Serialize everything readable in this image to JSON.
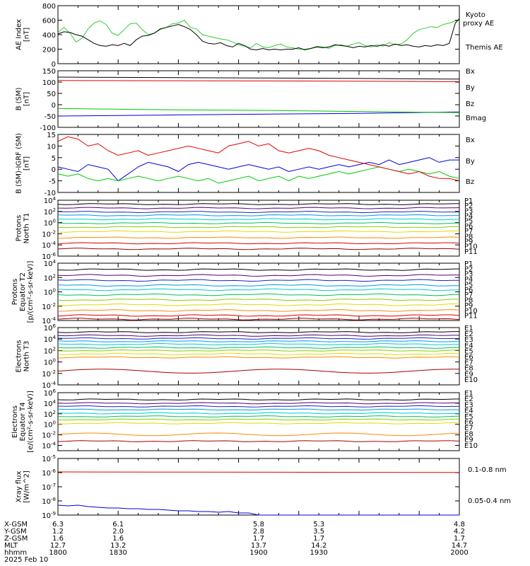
{
  "colors": {
    "black": "#000000",
    "red": "#e00000",
    "green": "#00c800",
    "blue": "#0000dd",
    "lightgreen": "#44dd44"
  },
  "chart_data": [
    {
      "type": "line",
      "ylabel": [
        "AE Index",
        "[nT]"
      ],
      "ylim": [
        0,
        800
      ],
      "yticks": [
        "0",
        "200",
        "400",
        "600",
        "800"
      ],
      "xlim": [
        1800,
        2000
      ],
      "series": [
        {
          "name": "Kyoto proxy AE",
          "color": "#33cc33",
          "x": [
            1800,
            1803,
            1806,
            1809,
            1812,
            1815,
            1818,
            1821,
            1824,
            1827,
            1830,
            1833,
            1836,
            1839,
            1842,
            1845,
            1848,
            1851,
            1854,
            1857,
            1860,
            1863,
            1866,
            1869,
            1872,
            1875,
            1878,
            1881,
            1884,
            1887,
            1890,
            1893,
            1896,
            1899,
            1902,
            1905,
            1908,
            1911,
            1914,
            1917,
            1920,
            1923,
            1926,
            1929,
            1932,
            1935,
            1938,
            1941,
            1944,
            1947,
            1950,
            1953,
            1956,
            1959,
            1962,
            1965,
            1968,
            1971,
            1974,
            1977,
            1980,
            1983,
            1986,
            1989,
            1992,
            1995,
            1998,
            2000
          ],
          "y": [
            430,
            500,
            420,
            300,
            350,
            480,
            560,
            590,
            540,
            420,
            390,
            470,
            550,
            560,
            470,
            400,
            420,
            470,
            500,
            550,
            560,
            600,
            500,
            480,
            400,
            380,
            360,
            340,
            330,
            300,
            260,
            240,
            220,
            280,
            230,
            220,
            250,
            270,
            230,
            220,
            200,
            200,
            210,
            240,
            230,
            210,
            250,
            260,
            240,
            270,
            290,
            250,
            230,
            260,
            240,
            290,
            260,
            270,
            330,
            420,
            470,
            490,
            510,
            500,
            540,
            560,
            590,
            600
          ]
        },
        {
          "name": "Themis AE",
          "color": "#000000",
          "x": [
            1800,
            1803,
            1806,
            1809,
            1812,
            1815,
            1818,
            1821,
            1824,
            1827,
            1830,
            1833,
            1836,
            1839,
            1842,
            1845,
            1848,
            1851,
            1854,
            1857,
            1860,
            1863,
            1866,
            1869,
            1872,
            1875,
            1878,
            1881,
            1884,
            1887,
            1890,
            1893,
            1896,
            1899,
            1902,
            1905,
            1908,
            1911,
            1914,
            1917,
            1920,
            1923,
            1926,
            1929,
            1932,
            1935,
            1938,
            1941,
            1944,
            1947,
            1950,
            1953,
            1956,
            1959,
            1962,
            1965,
            1968,
            1971,
            1974,
            1977,
            1980,
            1983,
            1986,
            1989,
            1992,
            1995,
            1998,
            2000
          ],
          "y": [
            410,
            440,
            430,
            400,
            380,
            330,
            280,
            250,
            240,
            260,
            250,
            280,
            250,
            330,
            380,
            390,
            420,
            480,
            500,
            520,
            540,
            510,
            470,
            400,
            310,
            280,
            270,
            290,
            250,
            230,
            280,
            250,
            200,
            190,
            210,
            190,
            200,
            190,
            200,
            200,
            220,
            190,
            210,
            230,
            220,
            230,
            260,
            250,
            240,
            220,
            240,
            230,
            250,
            240,
            260,
            240,
            270,
            250,
            260,
            240,
            230,
            250,
            240,
            260,
            250,
            280,
            560,
            620
          ]
        }
      ],
      "legend": "right"
    },
    {
      "type": "line",
      "ylabel": [
        "B (SM)",
        "[nT]"
      ],
      "ylim": [
        -100,
        150
      ],
      "yticks": [
        "-100",
        "-50",
        "0",
        "50",
        "100",
        "150"
      ],
      "xlim": [
        1800,
        2000
      ],
      "series": [
        {
          "name": "Bx",
          "color": "#0000dd",
          "x": [
            1800,
            1850,
            1900,
            1950,
            2000
          ],
          "y": [
            -50,
            -46,
            -42,
            -38,
            -32
          ]
        },
        {
          "name": "By",
          "color": "#00c800",
          "x": [
            1800,
            1850,
            1900,
            1950,
            2000
          ],
          "y": [
            -17,
            -22,
            -25,
            -30,
            -35
          ]
        },
        {
          "name": "Bz",
          "color": "#e00000",
          "x": [
            1800,
            1850,
            1900,
            1950,
            2000
          ],
          "y": [
            107,
            106,
            105,
            104,
            102
          ]
        },
        {
          "name": "Bmag",
          "color": "#000000",
          "x": [
            1800,
            1850,
            1900,
            1950,
            2000
          ],
          "y": [
            122,
            120,
            118,
            116,
            113
          ]
        }
      ],
      "legend": "right"
    },
    {
      "type": "line",
      "ylabel": [
        "B (SM)-IGRF (SM)",
        "[nT]"
      ],
      "ylim": [
        -10,
        15
      ],
      "yticks": [
        "-10",
        "-5",
        "0",
        "5",
        "10",
        "15"
      ],
      "xlim": [
        1800,
        2000
      ],
      "series": [
        {
          "name": "Bx",
          "color": "#0000dd",
          "x": [
            1800,
            1805,
            1810,
            1815,
            1820,
            1825,
            1830,
            1835,
            1840,
            1845,
            1850,
            1855,
            1860,
            1865,
            1870,
            1875,
            1880,
            1885,
            1890,
            1895,
            1900,
            1905,
            1910,
            1915,
            1920,
            1925,
            1930,
            1935,
            1940,
            1945,
            1950,
            1955,
            1960,
            1965,
            1970,
            1975,
            1980,
            1985,
            1990,
            1995,
            2000
          ],
          "y": [
            1,
            0,
            -1,
            2,
            1,
            0,
            -5,
            -2,
            1,
            3,
            2,
            1,
            -1,
            2,
            3,
            2,
            1,
            0,
            1,
            2,
            1,
            0,
            1,
            -1,
            0,
            1,
            0,
            1,
            2,
            1,
            2,
            3,
            2,
            4,
            2,
            3,
            4,
            5,
            3,
            4,
            4
          ]
        },
        {
          "name": "By",
          "color": "#00c800",
          "x": [
            1800,
            1805,
            1810,
            1815,
            1820,
            1825,
            1830,
            1835,
            1840,
            1845,
            1850,
            1855,
            1860,
            1865,
            1870,
            1875,
            1880,
            1885,
            1890,
            1895,
            1900,
            1905,
            1910,
            1915,
            1920,
            1925,
            1930,
            1935,
            1940,
            1945,
            1950,
            1955,
            1960,
            1965,
            1970,
            1975,
            1980,
            1985,
            1990,
            1995,
            2000
          ],
          "y": [
            -2,
            -3,
            -2,
            -4,
            -5,
            -4,
            -5,
            -4,
            -3,
            -4,
            -5,
            -4,
            -3,
            -4,
            -5,
            -4,
            -6,
            -5,
            -4,
            -3,
            -5,
            -4,
            -3,
            -5,
            -3,
            -4,
            -3,
            -2,
            -1,
            -2,
            -1,
            0,
            1,
            0,
            -1,
            0,
            -1,
            -2,
            -1,
            -3,
            -4
          ]
        },
        {
          "name": "Bz",
          "color": "#e00000",
          "x": [
            1800,
            1805,
            1810,
            1815,
            1820,
            1825,
            1830,
            1835,
            1840,
            1845,
            1850,
            1855,
            1860,
            1865,
            1870,
            1875,
            1880,
            1885,
            1890,
            1895,
            1900,
            1905,
            1910,
            1915,
            1920,
            1925,
            1930,
            1935,
            1940,
            1945,
            1950,
            1955,
            1960,
            1965,
            1970,
            1975,
            1980,
            1985,
            1990,
            1995,
            2000
          ],
          "y": [
            12,
            14,
            13,
            10,
            11,
            8,
            6,
            7,
            8,
            6,
            7,
            8,
            9,
            10,
            9,
            8,
            7,
            10,
            11,
            12,
            10,
            11,
            8,
            7,
            8,
            9,
            8,
            6,
            5,
            4,
            3,
            2,
            1,
            0,
            -1,
            -2,
            -1,
            -3,
            -4,
            -4,
            -5
          ]
        }
      ],
      "legend": "right"
    },
    {
      "type": "line",
      "ylabel": [
        "Protons",
        "North T1"
      ],
      "yscale": "log",
      "ylim": [
        1e-06,
        10000.0
      ],
      "yticks": [
        "10^-6",
        "10^-4",
        "10^-2",
        "10^0",
        "10^2",
        "10^4"
      ],
      "channels": [
        "P1",
        "P2",
        "P3",
        "P4",
        "P5",
        "P6",
        "P7",
        "P8",
        "P9",
        "P10",
        "P11"
      ],
      "channel_colors": [
        "#000000",
        "#550077",
        "#2222bb",
        "#0099ee",
        "#00cccc",
        "#00c060",
        "#88cc00",
        "#dddd00",
        "#ff8800",
        "#dd0000",
        "#990000"
      ],
      "series_log10": [
        3.3,
        2.6,
        1.9,
        1.3,
        0.6,
        -0.1,
        -0.8,
        -1.6,
        -2.7,
        -3.7,
        -4.7
      ],
      "legend": "right"
    },
    {
      "type": "line",
      "ylabel": [
        "Protons",
        "Equator T2",
        "[p/(cm²-s-sr-keV)]"
      ],
      "yscale": "log",
      "ylim": [
        0.0001,
        10000.0
      ],
      "yticks": [
        "10^-4",
        "10^-2",
        "10^0",
        "10^2",
        "10^4"
      ],
      "channels": [
        "P1",
        "P2",
        "P3",
        "P4",
        "P5",
        "P6",
        "P7",
        "P8",
        "P9",
        "P10",
        "P11"
      ],
      "channel_colors": [
        "#000000",
        "#550077",
        "#2222bb",
        "#0099ee",
        "#00cccc",
        "#00c060",
        "#88cc00",
        "#dddd00",
        "#ff8800",
        "#dd0000",
        "#990000"
      ],
      "series_log10": [
        3.1,
        2.3,
        1.6,
        0.9,
        0.3,
        -0.4,
        -1.1,
        -1.8,
        -2.6,
        -3.3,
        -3.8
      ],
      "legend": "right"
    },
    {
      "type": "line",
      "ylabel": [
        "Electrons",
        "North T3"
      ],
      "yscale": "log",
      "ylim": [
        0.0001,
        1000000.0
      ],
      "yticks": [
        "10^-4",
        "10^-2",
        "10^0",
        "10^2",
        "10^4",
        "10^6"
      ],
      "channels": [
        "E1",
        "E2",
        "E3",
        "E4",
        "E5",
        "E6",
        "E7",
        "E8",
        "E9",
        "E10"
      ],
      "channel_colors": [
        "#000000",
        "#550077",
        "#2222bb",
        "#0099ee",
        "#00cccc",
        "#00c060",
        "#88cc00",
        "#dddd00",
        "#ff8800",
        "#aa0000"
      ],
      "series_log10": [
        5.2,
        4.6,
        4.1,
        3.6,
        3.1,
        2.5,
        2.0,
        1.4,
        0.8,
        -1.6
      ],
      "legend": "right"
    },
    {
      "type": "line",
      "ylabel": [
        "Electrons",
        "Equator T4",
        "[e/(cm²-s-sr-keV)]"
      ],
      "yscale": "log",
      "ylim": [
        1e-05,
        1000000.0
      ],
      "yticks": [
        "10^-4",
        "10^-2",
        "10^0",
        "10^2",
        "10^4",
        "10^6"
      ],
      "channels": [
        "E1",
        "E2",
        "E3",
        "E4",
        "E5",
        "E6",
        "E7",
        "E8",
        "E9",
        "E10"
      ],
      "channel_colors": [
        "#000000",
        "#550077",
        "#2222bb",
        "#0099ee",
        "#00cccc",
        "#00c060",
        "#88cc00",
        "#dddd00",
        "#ff8800",
        "#aa0000"
      ],
      "series_log10": [
        4.7,
        4.0,
        3.4,
        2.8,
        2.1,
        1.5,
        0.9,
        0.2,
        -1.9,
        -3.2
      ],
      "legend": "right"
    },
    {
      "type": "line",
      "ylabel": [
        "Xray flux",
        "[W/m^2]"
      ],
      "yscale": "log",
      "ylim": [
        1e-09,
        1e-05
      ],
      "yticks": [
        "10^-9",
        "10^-8",
        "10^-7",
        "10^-6",
        "10^-5"
      ],
      "xlim": [
        1800,
        2000
      ],
      "series": [
        {
          "name": "0.1-0.8 nm",
          "color": "#e00000",
          "x": [
            1800,
            1850,
            1900,
            1950,
            2000
          ],
          "y_log10": [
            -5.95,
            -5.96,
            -5.97,
            -5.98,
            -5.99
          ]
        },
        {
          "name": "0.05-0.4 nm",
          "color": "#0000dd",
          "x": [
            1800,
            1805,
            1810,
            1815,
            1820,
            1825,
            1830,
            1835,
            1840,
            1845,
            1850,
            1855,
            1860,
            1865,
            1870,
            1875,
            1880,
            1885,
            1890,
            1895,
            1900,
            1905,
            1910,
            1920,
            1930,
            1940,
            1950,
            1960,
            1970,
            1980,
            1990,
            2000
          ],
          "y_log10": [
            -8.3,
            -8.35,
            -8.3,
            -8.4,
            -8.45,
            -8.5,
            -8.5,
            -8.55,
            -8.55,
            -8.6,
            -8.6,
            -8.65,
            -8.7,
            -8.7,
            -8.75,
            -8.75,
            -8.8,
            -8.75,
            -8.85,
            -8.85,
            -9.0,
            -9.0,
            -9.0,
            -9.0,
            -9.0,
            -9.0,
            -9.0,
            -9.0,
            -9.0,
            -9.0,
            -9.0,
            -9.0
          ]
        }
      ],
      "legend": "right"
    }
  ],
  "ephemeris": {
    "rows": [
      {
        "label": "X-GSM",
        "values": [
          "6.3",
          "6.1",
          "5.8",
          "5.3",
          "4.8"
        ]
      },
      {
        "label": "Y-GSM",
        "values": [
          "1.2",
          "2.0",
          "2.8",
          "3.5",
          "4.2"
        ]
      },
      {
        "label": "Z-GSM",
        "values": [
          "1.6",
          "1.6",
          "1.7",
          "1.7",
          "1.7"
        ]
      },
      {
        "label": "MLT",
        "values": [
          "12.7",
          "13.2",
          "13.7",
          "14.2",
          "14.7"
        ]
      },
      {
        "label": "hhmm",
        "values": [
          "1800",
          "1830",
          "1900",
          "1930",
          "2000"
        ]
      }
    ],
    "date": "2025 Feb 10"
  }
}
